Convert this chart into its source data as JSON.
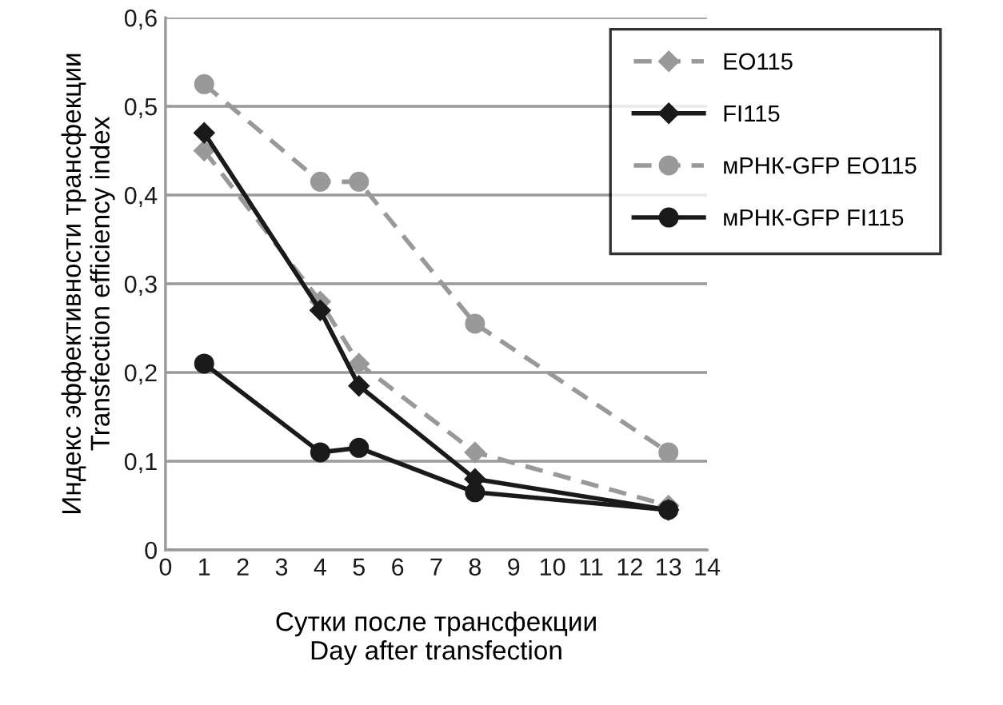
{
  "chart_data": {
    "type": "line",
    "xlabel": "Сутки после трансфекции\nDay after transfection",
    "ylabel": "Индекс эффективности трансфекции\nTransfection efficiency index",
    "x": [
      1,
      4,
      5,
      8,
      13
    ],
    "series": [
      {
        "name": "EO115",
        "color": "#999999",
        "marker": "diamond",
        "line_style": "dashed",
        "values": [
          0.45,
          0.28,
          0.21,
          0.11,
          0.05
        ]
      },
      {
        "name": "FI115",
        "color": "#1a1a1a",
        "marker": "diamond",
        "line_style": "solid",
        "values": [
          0.47,
          0.27,
          0.185,
          0.08,
          0.045
        ]
      },
      {
        "name": "мРНК-GFP EO115",
        "color": "#999999",
        "marker": "circle",
        "line_style": "dashed",
        "values": [
          0.525,
          0.415,
          0.415,
          0.255,
          0.11
        ]
      },
      {
        "name": "мРНК-GFP FI115",
        "color": "#1a1a1a",
        "marker": "circle",
        "line_style": "solid",
        "values": [
          0.21,
          0.11,
          0.115,
          0.065,
          0.045
        ]
      }
    ],
    "xlim": [
      0,
      14
    ],
    "xticks": [
      0,
      1,
      2,
      3,
      4,
      5,
      6,
      7,
      8,
      9,
      10,
      11,
      12,
      13,
      14
    ],
    "ylim": [
      0,
      0.6
    ],
    "yticks": [
      {
        "value": 0,
        "label": "0"
      },
      {
        "value": 0.1,
        "label": "0,1"
      },
      {
        "value": 0.2,
        "label": "0,2"
      },
      {
        "value": 0.3,
        "label": "0,3"
      },
      {
        "value": 0.4,
        "label": "0,4"
      },
      {
        "value": 0.5,
        "label": "0,5"
      },
      {
        "value": 0.6,
        "label": "0,6"
      }
    ],
    "grid": "y",
    "legend": "top right"
  }
}
